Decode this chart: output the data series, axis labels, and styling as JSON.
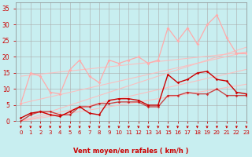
{
  "background_color": "#c8eef0",
  "grid_color": "#aaaaaa",
  "xlabel": "Vent moyen/en rafales ( km/h )",
  "xlabel_color": "#cc0000",
  "ylim": [
    0,
    37
  ],
  "xlim": [
    -0.5,
    23
  ],
  "yticks": [
    0,
    5,
    10,
    15,
    20,
    25,
    30,
    35
  ],
  "xticks": [
    0,
    1,
    2,
    3,
    4,
    5,
    6,
    7,
    8,
    9,
    10,
    11,
    12,
    13,
    14,
    15,
    16,
    17,
    18,
    19,
    20,
    21,
    22,
    23
  ],
  "ref_lines": [
    {
      "x": [
        0,
        23
      ],
      "y": [
        0,
        11.5
      ],
      "color": "#ffaaaa",
      "lw": 0.8,
      "alpha": 0.8
    },
    {
      "x": [
        0,
        23
      ],
      "y": [
        0,
        16.0
      ],
      "color": "#ffaaaa",
      "lw": 0.8,
      "alpha": 0.8
    },
    {
      "x": [
        0,
        23
      ],
      "y": [
        0,
        21.0
      ],
      "color": "#ffaaaa",
      "lw": 0.8,
      "alpha": 0.8
    },
    {
      "x": [
        0,
        23
      ],
      "y": [
        5.5,
        21.5
      ],
      "color": "#ffaaaa",
      "lw": 0.8,
      "alpha": 0.8
    },
    {
      "x": [
        0,
        23
      ],
      "y": [
        14.0,
        21.5
      ],
      "color": "#ffaaaa",
      "lw": 0.8,
      "alpha": 0.8
    }
  ],
  "series": [
    {
      "x": [
        0,
        1,
        2,
        3,
        4,
        5,
        6,
        7,
        8,
        9,
        10,
        11,
        12,
        13,
        14,
        15,
        16,
        17,
        18,
        19,
        20,
        21,
        22,
        23
      ],
      "y": [
        5.5,
        15,
        14,
        9,
        8.5,
        16,
        19,
        14,
        12,
        19,
        18,
        19,
        20,
        18,
        19,
        29,
        25,
        29,
        24,
        30,
        33,
        26,
        21,
        21
      ],
      "color": "#ffaaaa",
      "lw": 0.9,
      "ms": 2.0,
      "alpha": 1.0
    },
    {
      "x": [
        0,
        1,
        2,
        3,
        4,
        5,
        6,
        7,
        8,
        9,
        10,
        11,
        12,
        13,
        14,
        15,
        16,
        17,
        18,
        19,
        20,
        21,
        22,
        23
      ],
      "y": [
        1,
        2.5,
        3,
        2,
        1.5,
        3,
        4.5,
        2.5,
        2,
        6.5,
        7,
        7,
        6.5,
        5,
        5,
        14.5,
        12,
        13,
        15,
        15.5,
        13,
        12.5,
        9,
        8.5
      ],
      "color": "#cc0000",
      "lw": 1.0,
      "ms": 1.8,
      "alpha": 1.0
    },
    {
      "x": [
        0,
        1,
        2,
        3,
        4,
        5,
        6,
        7,
        8,
        9,
        10,
        11,
        12,
        13,
        14,
        15,
        16,
        17,
        18,
        19,
        20,
        21,
        22,
        23
      ],
      "y": [
        0,
        2,
        3,
        3,
        2,
        2,
        4.5,
        4.5,
        5.5,
        5.5,
        6,
        6,
        6,
        4.5,
        4.5,
        8,
        8,
        9,
        8.5,
        8.5,
        10,
        8,
        8,
        8
      ],
      "color": "#cc0000",
      "lw": 1.0,
      "ms": 1.8,
      "alpha": 0.7
    }
  ],
  "arrow_color": "#cc0000"
}
